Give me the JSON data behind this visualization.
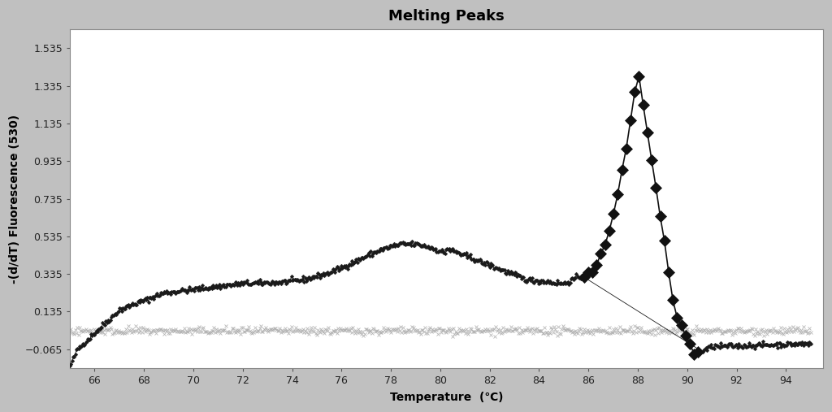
{
  "title": "Melting Peaks",
  "xlabel": "Temperature  (℃)",
  "ylabel": "-(d/dT) Fluorescence (530)",
  "xlim": [
    65.0,
    95.5
  ],
  "ylim": [
    -0.165,
    1.635
  ],
  "yticks": [
    -0.065,
    0.135,
    0.335,
    0.535,
    0.735,
    0.935,
    1.135,
    1.335,
    1.535
  ],
  "xticks": [
    66,
    68,
    70,
    72,
    74,
    76,
    78,
    80,
    82,
    84,
    86,
    88,
    90,
    92,
    94
  ],
  "background_color": "#c0c0c0",
  "plot_bg_color": "#ffffff",
  "title_fontsize": 13,
  "axis_fontsize": 10,
  "tick_fontsize": 9,
  "neg_control_level": 0.033,
  "neg_control_noise": 0.01
}
